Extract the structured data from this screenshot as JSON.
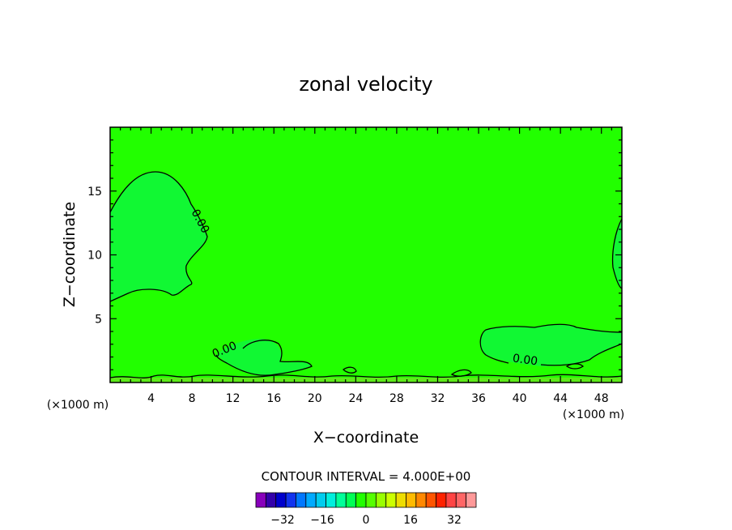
{
  "chart_data": {
    "type": "contour",
    "title": "zonal velocity",
    "xlabel": "X−coordinate",
    "ylabel": "Z−coordinate",
    "x_unit": "(×1000 m)",
    "x_unit_right": "(×1000 m)",
    "xlim": [
      0,
      50
    ],
    "ylim": [
      0,
      20
    ],
    "x_ticks": [
      4,
      8,
      12,
      16,
      20,
      24,
      28,
      32,
      36,
      40,
      44,
      48
    ],
    "y_ticks": [
      5,
      10,
      15
    ],
    "field_color": "#22ff00",
    "contour_labels": [
      {
        "text": "0.00",
        "x": 8.5,
        "y": 12.5
      },
      {
        "text": "0.00",
        "x": 11.3,
        "y": 2.3
      },
      {
        "text": "0.00",
        "x": 40.5,
        "y": 1.5
      }
    ],
    "contour_interval_text": "CONTOUR INTERVAL = 4.000E+00",
    "colorbar": {
      "labels": [
        "−32",
        "−16",
        "0",
        "16",
        "32"
      ],
      "colors": [
        "#8800bb",
        "#3300aa",
        "#0000cc",
        "#1133ee",
        "#0077ff",
        "#00aaff",
        "#00ccee",
        "#00eedd",
        "#00ff99",
        "#00ff55",
        "#22ff00",
        "#55ff00",
        "#99ff00",
        "#ccff00",
        "#eedd00",
        "#ffbb00",
        "#ff8800",
        "#ff5500",
        "#ff2200",
        "#ff4444",
        "#ff6666",
        "#ff9999"
      ]
    }
  }
}
